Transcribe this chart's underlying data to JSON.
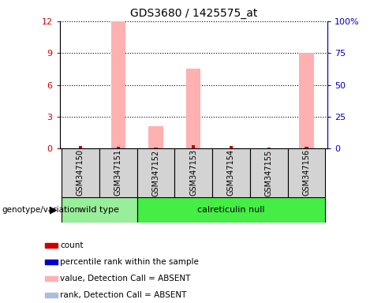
{
  "title": "GDS3680 / 1425575_at",
  "samples": [
    "GSM347150",
    "GSM347151",
    "GSM347152",
    "GSM347153",
    "GSM347154",
    "GSM347155",
    "GSM347156"
  ],
  "count_values": [
    0.25,
    0.18,
    0.1,
    0.28,
    0.25,
    0.12,
    0.18
  ],
  "rank_values": [
    0.0,
    0.0,
    0.0,
    0.0,
    0.0,
    0.0,
    0.0
  ],
  "absent_value_bars": [
    0.0,
    12.0,
    2.1,
    7.5,
    0.0,
    0.0,
    9.0
  ],
  "absent_rank_bars": [
    0.0,
    1.6,
    0.28,
    0.55,
    0.0,
    0.0,
    0.9
  ],
  "ylim_left": [
    0,
    12
  ],
  "ylim_right": [
    0,
    100
  ],
  "yticks_left": [
    0,
    3,
    6,
    9,
    12
  ],
  "ytick_labels_left": [
    "0",
    "3",
    "6",
    "9",
    "12"
  ],
  "yticks_right": [
    0,
    25,
    50,
    75,
    100
  ],
  "ytick_labels_right": [
    "0",
    "25",
    "50",
    "75",
    "100%"
  ],
  "colors": {
    "count": "#CC0000",
    "rank": "#0000CC",
    "absent_value": "#FFB0B0",
    "absent_rank": "#AABFDD",
    "ytick_left": "#CC0000",
    "ytick_right": "#0000BB",
    "label_box": "#D3D3D3",
    "wild_type": "#99EE99",
    "null_type": "#44EE44"
  },
  "groups": [
    {
      "label": "wild type",
      "start": 0,
      "end": 1,
      "color": "#99EE99"
    },
    {
      "label": "calreticulin null",
      "start": 2,
      "end": 6,
      "color": "#44EE44"
    }
  ],
  "legend_items": [
    {
      "label": "count",
      "color": "#CC0000"
    },
    {
      "label": "percentile rank within the sample",
      "color": "#0000CC"
    },
    {
      "label": "value, Detection Call = ABSENT",
      "color": "#FFB0B0"
    },
    {
      "label": "rank, Detection Call = ABSENT",
      "color": "#AABFDD"
    }
  ]
}
